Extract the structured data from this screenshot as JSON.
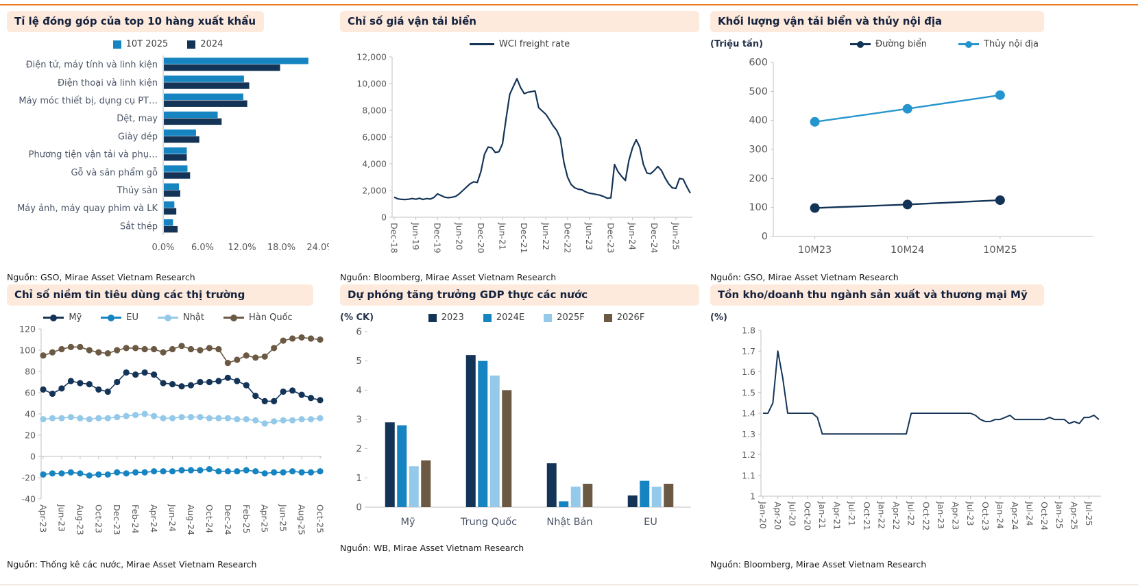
{
  "page": {
    "accent_color": "#ee7d22",
    "header_bg": "#fdeadc",
    "title_color": "#14213d",
    "axis_color": "#c0c0c0",
    "tick_text_color": "#595959",
    "category_text_color": "#4a5568"
  },
  "chart_data": [
    {
      "type": "bar",
      "orientation": "horizontal",
      "title": "Tỉ lệ đóng góp của top 10 hàng xuất khẩu",
      "source": "Nguồn: GSO, Mirae Asset Vietnam Research",
      "categories": [
        "Điện tử, máy tính và linh kiện",
        "Điện thoại và linh kiện",
        "Máy móc thiết bị, dụng cụ PT…",
        "Dệt, may",
        "Giày dép",
        "Phương tiện vận tải và phụ…",
        "Gỗ và sản phẩm gỗ",
        "Thủy sản",
        "Máy ảnh, máy quay phim và LK",
        "Sắt thép"
      ],
      "xlim": [
        0,
        24
      ],
      "xtick_values": [
        0,
        6,
        12,
        18,
        24
      ],
      "xtick_labels": [
        "0.0%",
        "6.0%",
        "12.0%",
        "18.0%",
        "24.0%"
      ],
      "series": [
        {
          "name": "10T 2025",
          "color": "#1684c1",
          "values": [
            22.1,
            12.3,
            12.2,
            8.3,
            5.0,
            3.6,
            3.7,
            2.4,
            1.7,
            1.5
          ]
        },
        {
          "name": "2024",
          "color": "#143457",
          "values": [
            17.8,
            13.1,
            12.8,
            8.9,
            5.5,
            3.6,
            4.1,
            2.6,
            2.0,
            2.2
          ]
        }
      ]
    },
    {
      "type": "line",
      "title": "Chỉ số giá vận tải biển",
      "source": "Nguồn: Bloomberg, Mirae Asset Vietnam Research",
      "ylim": [
        0,
        12000
      ],
      "ytick_step": 2000,
      "ytick_format": "comma",
      "x_labels": [
        "Dec-18",
        "Jun-19",
        "Dec-19",
        "Jun-20",
        "Dec-20",
        "Jun-21",
        "Dec-21",
        "Jun-22",
        "Dec-22",
        "Jun-23",
        "Dec-23",
        "Jun-24",
        "Dec-24",
        "Jun-25"
      ],
      "label_every": 6,
      "series": [
        {
          "name": "WCI freight rate",
          "color": "#143457",
          "values": [
            1500,
            1380,
            1340,
            1330,
            1350,
            1400,
            1350,
            1420,
            1330,
            1400,
            1360,
            1480,
            1750,
            1620,
            1500,
            1460,
            1500,
            1560,
            1750,
            2000,
            2250,
            2500,
            2650,
            2600,
            3400,
            4700,
            5250,
            5200,
            4850,
            4900,
            5500,
            7400,
            9200,
            9800,
            10360,
            9700,
            9250,
            9350,
            9400,
            9450,
            8200,
            7950,
            7700,
            7300,
            6850,
            6500,
            5900,
            4100,
            3000,
            2450,
            2200,
            2100,
            2050,
            1900,
            1800,
            1760,
            1700,
            1650,
            1550,
            1420,
            1450,
            3950,
            3400,
            3050,
            2750,
            4250,
            5200,
            5800,
            5250,
            3950,
            3300,
            3250,
            3500,
            3800,
            3500,
            2950,
            2500,
            2200,
            2150,
            2900,
            2850,
            2300,
            1800
          ]
        }
      ]
    },
    {
      "type": "line",
      "title": "Khối lượng vận tải biển và thủy nội địa",
      "unit": "(Triệu tấn)",
      "source": "Nguồn: GSO, Mirae Asset Vietnam Research",
      "ylim": [
        0,
        600
      ],
      "ytick_step": 100,
      "categories": [
        "10M23",
        "10M24",
        "10M25"
      ],
      "series": [
        {
          "name": "Đường biển",
          "color": "#143457",
          "values": [
            98,
            110,
            125
          ]
        },
        {
          "name": "Thủy nội địa",
          "color": "#2596cd",
          "values": [
            395,
            440,
            487
          ]
        }
      ]
    },
    {
      "type": "line",
      "title": "Chỉ số niềm tin tiêu dùng các thị trường",
      "source": "Nguồn: Thống kê các nước, Mirae Asset Vietnam Research",
      "ylim": [
        -40,
        120
      ],
      "ytick_step": 20,
      "x_labels": [
        "Apr-23",
        "Jun-23",
        "Aug-23",
        "Oct-23",
        "Dec-23",
        "Feb-24",
        "Apr-24",
        "Jun-24",
        "Aug-24",
        "Oct-24",
        "Dec-24",
        "Feb-25",
        "Apr-25",
        "Jun-25",
        "Aug-25",
        "Oct-25"
      ],
      "label_every": 2,
      "series": [
        {
          "name": "Mỹ",
          "color": "#143457",
          "values": [
            63,
            59,
            64,
            71,
            69,
            68,
            63,
            61,
            70,
            79,
            77,
            79,
            77,
            69,
            68,
            66,
            67,
            70,
            70,
            71,
            74,
            71,
            67,
            57,
            52,
            52,
            61,
            62,
            58,
            55,
            53
          ]
        },
        {
          "name": "EU",
          "color": "#1684c1",
          "values": [
            -17,
            -16,
            -16,
            -15,
            -16,
            -18,
            -17,
            -17,
            -15,
            -16,
            -15,
            -15,
            -14,
            -14,
            -14,
            -13,
            -13,
            -13,
            -12,
            -14,
            -14,
            -14,
            -13,
            -14,
            -16,
            -15,
            -15,
            -14,
            -15,
            -15,
            -14
          ]
        },
        {
          "name": "Nhật",
          "color": "#94c9e9",
          "values": [
            35,
            36,
            36,
            37,
            36,
            35,
            36,
            36,
            37,
            38,
            39,
            40,
            38,
            36,
            36,
            37,
            37,
            37,
            36,
            36,
            36,
            35,
            35,
            34,
            31,
            33,
            34,
            34,
            35,
            35,
            36
          ]
        },
        {
          "name": "Hàn Quốc",
          "color": "#6b5944",
          "values": [
            95,
            98,
            101,
            103,
            103,
            100,
            98,
            97,
            100,
            102,
            102,
            101,
            101,
            98,
            101,
            104,
            101,
            100,
            102,
            101,
            88,
            91,
            95,
            93,
            94,
            102,
            109,
            111,
            112,
            111,
            110
          ]
        }
      ]
    },
    {
      "type": "bar",
      "orientation": "vertical",
      "title": "Dự phóng tăng trưởng GDP thực các nước",
      "unit": "(% CK)",
      "source": "Nguồn: WB, Mirae Asset Vietnam Research",
      "ylim": [
        0,
        6
      ],
      "ytick_step": 1,
      "categories": [
        "Mỹ",
        "Trung Quốc",
        "Nhật Bản",
        "EU"
      ],
      "series": [
        {
          "name": "2023",
          "color": "#143457",
          "values": [
            2.9,
            5.2,
            1.5,
            0.4
          ]
        },
        {
          "name": "2024E",
          "color": "#1684c1",
          "values": [
            2.8,
            5.0,
            0.2,
            0.9
          ]
        },
        {
          "name": "2025F",
          "color": "#94c9e9",
          "values": [
            1.4,
            4.5,
            0.7,
            0.7
          ]
        },
        {
          "name": "2026F",
          "color": "#6b5944",
          "values": [
            1.6,
            4.0,
            0.8,
            0.8
          ]
        }
      ]
    },
    {
      "type": "line",
      "title": "Tồn kho/doanh thu ngành sản xuất và thương mại Mỹ",
      "unit": "(%)",
      "source": "Nguồn: Bloomberg, Mirae Asset Vietnam Research",
      "ylim": [
        1,
        1.8
      ],
      "ytick_step": 0.1,
      "x_labels": [
        "Jan-20",
        "Apr-20",
        "Jul-20",
        "Oct-20",
        "Jan-21",
        "Apr-21",
        "Jul-21",
        "Oct-21",
        "Jan-22",
        "Apr-22",
        "Jul-22",
        "Oct-22",
        "Jan-23",
        "Apr-23",
        "Jul-23",
        "Oct-23",
        "Jan-24",
        "Apr-24",
        "Jul-24",
        "Oct-24",
        "Jan-25",
        "Apr-25",
        "Jul-25"
      ],
      "label_every": 3,
      "series": [
        {
          "name": "Tồn kho/doanh thu",
          "color": "#143457",
          "values": [
            1.4,
            1.4,
            1.45,
            1.7,
            1.57,
            1.4,
            1.4,
            1.4,
            1.4,
            1.4,
            1.4,
            1.38,
            1.3,
            1.3,
            1.3,
            1.3,
            1.3,
            1.3,
            1.3,
            1.3,
            1.3,
            1.3,
            1.3,
            1.3,
            1.3,
            1.3,
            1.3,
            1.3,
            1.3,
            1.3,
            1.4,
            1.4,
            1.4,
            1.4,
            1.4,
            1.4,
            1.4,
            1.4,
            1.4,
            1.4,
            1.4,
            1.4,
            1.4,
            1.39,
            1.37,
            1.36,
            1.36,
            1.37,
            1.37,
            1.38,
            1.39,
            1.37,
            1.37,
            1.37,
            1.37,
            1.37,
            1.37,
            1.37,
            1.38,
            1.37,
            1.37,
            1.37,
            1.35,
            1.36,
            1.35,
            1.38,
            1.38,
            1.39,
            1.37
          ]
        }
      ]
    }
  ]
}
